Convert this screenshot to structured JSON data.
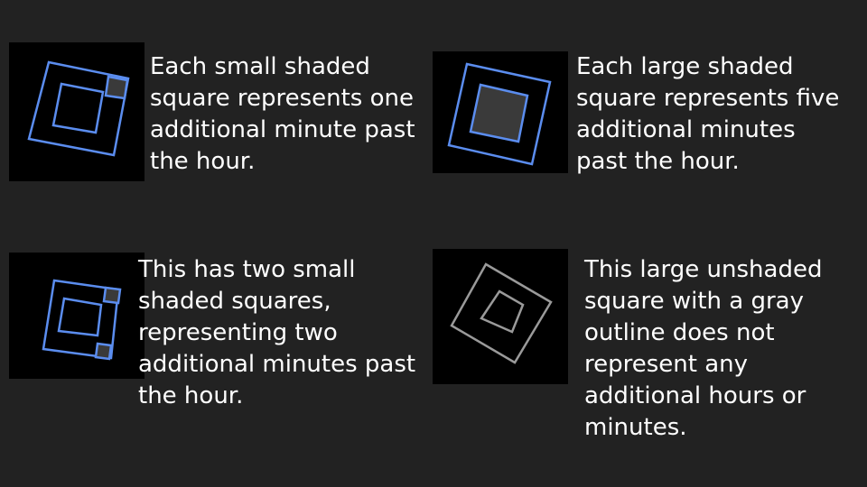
{
  "colors": {
    "background": "#222222",
    "panel": "#000000",
    "blue_outline": "#5b8def",
    "shaded_fill": "#3a3a3a",
    "gray_outline": "#9a9a9a",
    "text": "#ffffff"
  },
  "legend": [
    {
      "icon": "small-shaded-square-icon",
      "text": "Each small shaded square represents one additional minute past the hour."
    },
    {
      "icon": "large-shaded-square-icon",
      "text": "Each large shaded square represents five additional minutes past the hour."
    },
    {
      "icon": "two-small-shaded-squares-icon",
      "text": "This has two small shaded squares, representing two additional minutes past the hour."
    },
    {
      "icon": "large-unshaded-gray-square-icon",
      "text": "This large unshaded square with a gray outline does not represent any additional hours or minutes."
    }
  ]
}
